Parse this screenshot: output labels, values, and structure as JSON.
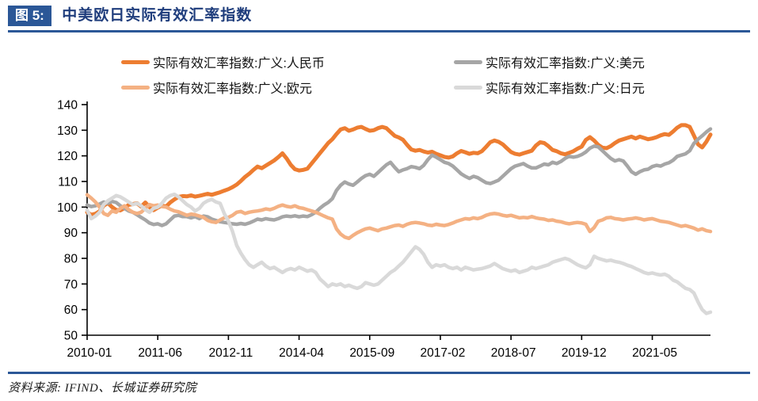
{
  "figure": {
    "badge": "图 5:",
    "title": "中美欧日实际有效汇率指数"
  },
  "source_label": "资料来源: IFIND、长城证券研究院",
  "colors": {
    "navy": "#2B5797",
    "title_text": "#1F3D7C",
    "axis": "#000000",
    "tick_text": "#000000"
  },
  "chart_data": {
    "type": "line",
    "title": "中美欧日实际有效汇率指数",
    "xlabel": "",
    "ylabel": "",
    "ylim": [
      50,
      140
    ],
    "y_ticks": [
      50,
      60,
      70,
      80,
      90,
      100,
      110,
      120,
      130,
      140
    ],
    "grid": false,
    "legend_position": "top",
    "x_start": "2010-01",
    "x_end": "2022-07",
    "x_frequency": "monthly",
    "x_tick_labels": [
      "2010-01",
      "2011-06",
      "2012-11",
      "2014-04",
      "2015-09",
      "2017-02",
      "2018-07",
      "2019-12",
      "2021-05"
    ],
    "x_tick_month_indices": [
      0,
      17,
      34,
      51,
      68,
      85,
      102,
      119,
      136
    ],
    "series": [
      {
        "name": "实际有效汇率指数:广义:人民币",
        "color": "#ED7D31",
        "width": 5,
        "values": [
          98.0,
          97.0,
          97.4,
          98.4,
          100.6,
          101.6,
          100.0,
          98.9,
          98.7,
          99.6,
          100.9,
          101.2,
          101.5,
          100.2,
          101.8,
          100.0,
          98.8,
          99.8,
          100.6,
          100.2,
          101.8,
          103.0,
          104.0,
          104.3,
          104.2,
          104.6,
          104.1,
          104.4,
          104.8,
          105.2,
          104.8,
          105.3,
          105.8,
          106.4,
          107.0,
          107.8,
          108.8,
          110.2,
          111.8,
          113.0,
          114.5,
          115.8,
          115.2,
          116.2,
          117.2,
          118.2,
          119.5,
          121.0,
          119.0,
          116.5,
          114.8,
          114.3,
          114.5,
          115.0,
          117.0,
          119.0,
          121.0,
          123.0,
          125.0,
          126.5,
          128.5,
          130.3,
          130.8,
          129.8,
          130.3,
          131.0,
          131.3,
          130.5,
          129.8,
          130.0,
          130.8,
          131.3,
          130.8,
          129.3,
          127.8,
          127.2,
          126.3,
          124.3,
          122.5,
          122.0,
          122.3,
          121.7,
          121.3,
          121.6,
          120.8,
          120.2,
          119.6,
          119.3,
          119.8,
          121.0,
          121.9,
          121.4,
          120.8,
          121.2,
          121.0,
          121.8,
          123.5,
          125.3,
          126.0,
          125.5,
          124.5,
          123.0,
          121.5,
          120.8,
          120.5,
          121.0,
          121.5,
          122.0,
          124.0,
          125.3,
          125.0,
          123.8,
          122.3,
          121.8,
          121.0,
          120.6,
          121.2,
          121.8,
          122.8,
          123.6,
          126.2,
          127.3,
          126.0,
          124.3,
          123.2,
          123.0,
          123.8,
          125.0,
          126.0,
          126.5,
          127.0,
          127.5,
          126.8,
          127.5,
          127.0,
          126.5,
          126.8,
          127.3,
          128.0,
          128.5,
          128.2,
          129.5,
          131.0,
          132.0,
          132.0,
          131.3,
          128.0,
          124.5,
          123.3,
          125.5,
          128.3
        ]
      },
      {
        "name": "实际有效汇率指数:广义:美元",
        "color": "#A6A6A6",
        "width": 4.5,
        "values": [
          100.8,
          100.2,
          100.5,
          101.2,
          102.0,
          101.5,
          102.2,
          101.8,
          100.5,
          99.5,
          98.5,
          98.0,
          97.0,
          96.0,
          95.0,
          93.8,
          93.2,
          93.5,
          92.8,
          93.5,
          95.0,
          96.5,
          96.8,
          96.3,
          96.3,
          95.8,
          96.3,
          95.5,
          96.5,
          96.2,
          95.3,
          94.8,
          94.3,
          94.0,
          93.8,
          93.5,
          93.3,
          93.6,
          93.3,
          93.8,
          94.5,
          95.3,
          95.0,
          95.5,
          95.2,
          95.0,
          95.5,
          96.2,
          96.5,
          96.3,
          96.6,
          96.2,
          96.5,
          96.3,
          97.0,
          98.0,
          99.5,
          100.8,
          101.8,
          103.3,
          106.5,
          108.5,
          109.8,
          109.0,
          108.5,
          109.8,
          111.2,
          112.3,
          112.8,
          112.0,
          113.5,
          115.0,
          116.5,
          117.5,
          115.5,
          113.8,
          114.5,
          115.0,
          115.8,
          115.5,
          115.0,
          116.3,
          118.5,
          120.3,
          119.5,
          118.5,
          117.5,
          117.0,
          116.0,
          114.5,
          113.0,
          112.0,
          111.2,
          112.0,
          111.5,
          110.5,
          109.5,
          109.2,
          109.8,
          110.5,
          112.0,
          113.5,
          115.0,
          116.0,
          116.5,
          117.0,
          116.0,
          115.3,
          115.3,
          116.0,
          116.8,
          116.5,
          117.5,
          117.0,
          117.8,
          119.0,
          119.8,
          119.5,
          119.8,
          120.5,
          121.5,
          123.0,
          123.8,
          123.5,
          122.0,
          120.5,
          119.0,
          118.0,
          118.5,
          118.0,
          116.0,
          113.8,
          112.8,
          113.8,
          114.5,
          114.8,
          115.8,
          116.3,
          116.0,
          116.8,
          117.3,
          118.3,
          119.8,
          120.3,
          120.8,
          122.0,
          124.8,
          126.5,
          127.8,
          129.3,
          130.5
        ]
      },
      {
        "name": "实际有效汇率指数:广义:欧元",
        "color": "#F4B183",
        "width": 4.5,
        "values": [
          104.8,
          103.5,
          102.0,
          100.0,
          97.5,
          96.8,
          98.5,
          98.0,
          99.5,
          100.5,
          99.0,
          98.0,
          97.5,
          98.0,
          99.5,
          101.0,
          100.5,
          100.8,
          100.2,
          100.0,
          99.2,
          98.5,
          98.2,
          97.5,
          96.8,
          97.3,
          97.0,
          96.5,
          96.0,
          94.8,
          94.3,
          94.0,
          95.0,
          95.8,
          96.0,
          96.8,
          98.0,
          98.3,
          97.5,
          98.0,
          98.3,
          98.5,
          98.8,
          99.3,
          99.0,
          99.5,
          100.3,
          100.8,
          100.3,
          100.0,
          100.5,
          99.8,
          99.5,
          99.0,
          98.5,
          98.0,
          97.3,
          96.5,
          95.8,
          95.3,
          91.5,
          89.5,
          88.3,
          87.8,
          89.0,
          90.0,
          90.8,
          91.5,
          91.8,
          91.3,
          90.8,
          91.5,
          91.8,
          92.3,
          92.8,
          93.0,
          92.5,
          93.3,
          93.8,
          94.0,
          93.8,
          93.5,
          93.0,
          92.8,
          93.3,
          93.0,
          92.8,
          93.2,
          93.8,
          94.5,
          95.0,
          95.5,
          95.3,
          95.8,
          95.5,
          96.0,
          96.8,
          97.3,
          97.5,
          97.3,
          96.8,
          96.5,
          96.8,
          96.3,
          95.8,
          96.0,
          95.8,
          96.3,
          95.8,
          95.5,
          95.3,
          94.8,
          95.0,
          94.5,
          94.3,
          93.8,
          93.5,
          93.8,
          94.0,
          93.8,
          93.3,
          90.5,
          92.0,
          94.5,
          95.0,
          95.8,
          96.0,
          95.5,
          95.3,
          95.0,
          95.3,
          95.5,
          95.8,
          95.5,
          95.0,
          95.3,
          95.5,
          95.0,
          94.5,
          94.3,
          94.0,
          93.5,
          93.0,
          92.5,
          92.8,
          92.3,
          91.8,
          91.0,
          91.5,
          90.8,
          90.5
        ]
      },
      {
        "name": "实际有效汇率指数:广义:日元",
        "color": "#D9D9D9",
        "width": 4.5,
        "values": [
          98.8,
          95.5,
          96.5,
          98.0,
          101.0,
          102.5,
          103.5,
          104.5,
          104.0,
          103.0,
          102.0,
          101.0,
          101.5,
          100.5,
          99.0,
          98.0,
          99.5,
          100.0,
          101.5,
          103.5,
          104.5,
          105.0,
          104.0,
          102.5,
          101.0,
          100.0,
          98.5,
          99.5,
          101.5,
          102.5,
          103.0,
          102.0,
          101.5,
          97.5,
          94.5,
          90.5,
          85.0,
          82.0,
          79.5,
          77.5,
          76.5,
          77.5,
          78.5,
          77.0,
          76.0,
          76.5,
          75.5,
          74.5,
          75.5,
          76.0,
          75.5,
          76.5,
          75.8,
          75.0,
          75.5,
          74.5,
          72.0,
          70.5,
          69.0,
          70.0,
          69.5,
          70.0,
          69.0,
          69.5,
          68.8,
          68.3,
          69.0,
          70.5,
          70.0,
          69.5,
          70.0,
          71.5,
          73.0,
          74.5,
          75.5,
          77.0,
          78.5,
          80.5,
          82.5,
          84.5,
          83.5,
          81.5,
          78.5,
          76.5,
          77.5,
          77.0,
          77.5,
          76.5,
          76.0,
          76.5,
          75.5,
          76.5,
          76.0,
          75.5,
          75.8,
          76.0,
          76.5,
          77.0,
          78.0,
          77.0,
          76.0,
          75.5,
          75.0,
          75.5,
          74.5,
          75.0,
          75.5,
          76.5,
          76.0,
          76.5,
          77.0,
          77.5,
          78.5,
          79.0,
          79.5,
          80.0,
          79.5,
          78.5,
          77.5,
          76.8,
          76.3,
          77.5,
          80.8,
          80.0,
          79.5,
          79.0,
          79.3,
          78.8,
          78.5,
          78.0,
          77.3,
          76.8,
          76.0,
          75.3,
          74.5,
          74.0,
          74.3,
          73.8,
          73.5,
          73.8,
          73.0,
          71.5,
          70.8,
          69.5,
          68.3,
          67.8,
          66.5,
          63.0,
          60.0,
          58.5,
          59.0
        ]
      }
    ]
  }
}
